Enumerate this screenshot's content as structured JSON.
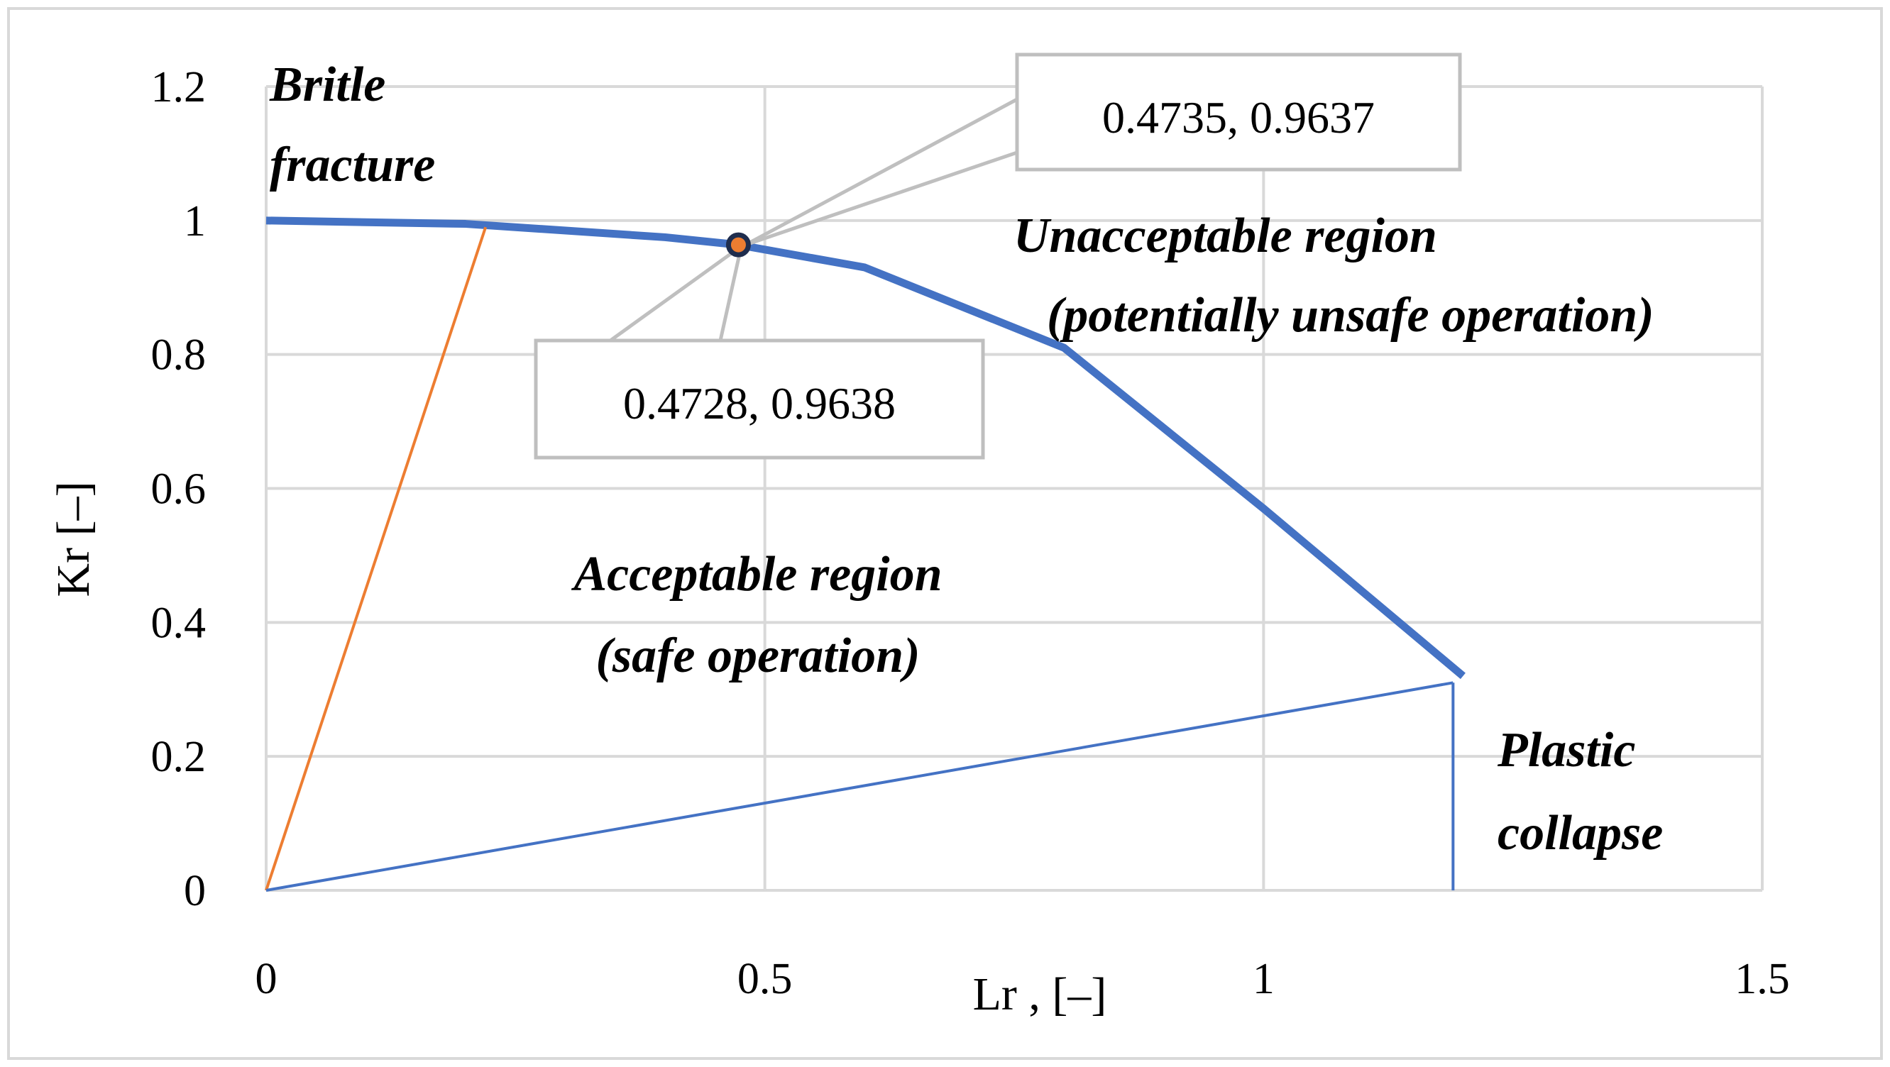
{
  "chart_data": {
    "type": "line",
    "xlabel": "Lr , [–]",
    "ylabel": "Kr [–]",
    "xlim": [
      0,
      1.5
    ],
    "ylim": [
      0,
      1.2
    ],
    "x_ticks": [
      "0",
      "0.5",
      "1",
      "1.5"
    ],
    "y_ticks": [
      "0",
      "0.2",
      "0.4",
      "0.6",
      "0.8",
      "1",
      "1.2"
    ],
    "grid": true,
    "series": [
      {
        "role": "failure-assessment-curve",
        "color": "#4472C4",
        "x": [
          0,
          0.2,
          0.4,
          0.4728,
          0.6,
          0.8,
          1.0,
          1.2
        ],
        "y": [
          1.0,
          0.995,
          0.975,
          0.9638,
          0.93,
          0.81,
          0.57,
          0.32
        ]
      },
      {
        "role": "brittle-fracture-line",
        "color": "#ED7D31",
        "x": [
          0,
          0.22
        ],
        "y": [
          0,
          0.99
        ]
      },
      {
        "role": "plastic-collapse-line",
        "color": "#4472C4",
        "x": [
          0,
          1.19
        ],
        "y": [
          0,
          0.31
        ]
      },
      {
        "role": "plastic-collapse-vertical",
        "color": "#4472C4",
        "x": [
          1.19,
          1.19
        ],
        "y": [
          0.31,
          0
        ]
      }
    ],
    "marker": {
      "x": 0.4735,
      "y": 0.9637,
      "color": "#ED7D31",
      "edge_color": "#1F2D4D"
    },
    "callouts": [
      {
        "id": "upper",
        "text": "0.4735, 0.9637"
      },
      {
        "id": "lower",
        "text": "0.4728, 0.9638"
      }
    ],
    "annotations": {
      "brittle_line1": "Britle",
      "brittle_line2": "fracture",
      "unacceptable_line1": "Unacceptable region",
      "unacceptable_line2": "(potentially unsafe operation)",
      "acceptable_line1": "Acceptable region",
      "acceptable_line2": "(safe operation)",
      "plastic_line1": "Plastic",
      "plastic_line2": "collapse"
    }
  },
  "colors": {
    "grid": "#D9D9D9",
    "frame": "#D9D9D9",
    "callout_border": "#BFBFBF",
    "leader": "#BFBFBF"
  }
}
